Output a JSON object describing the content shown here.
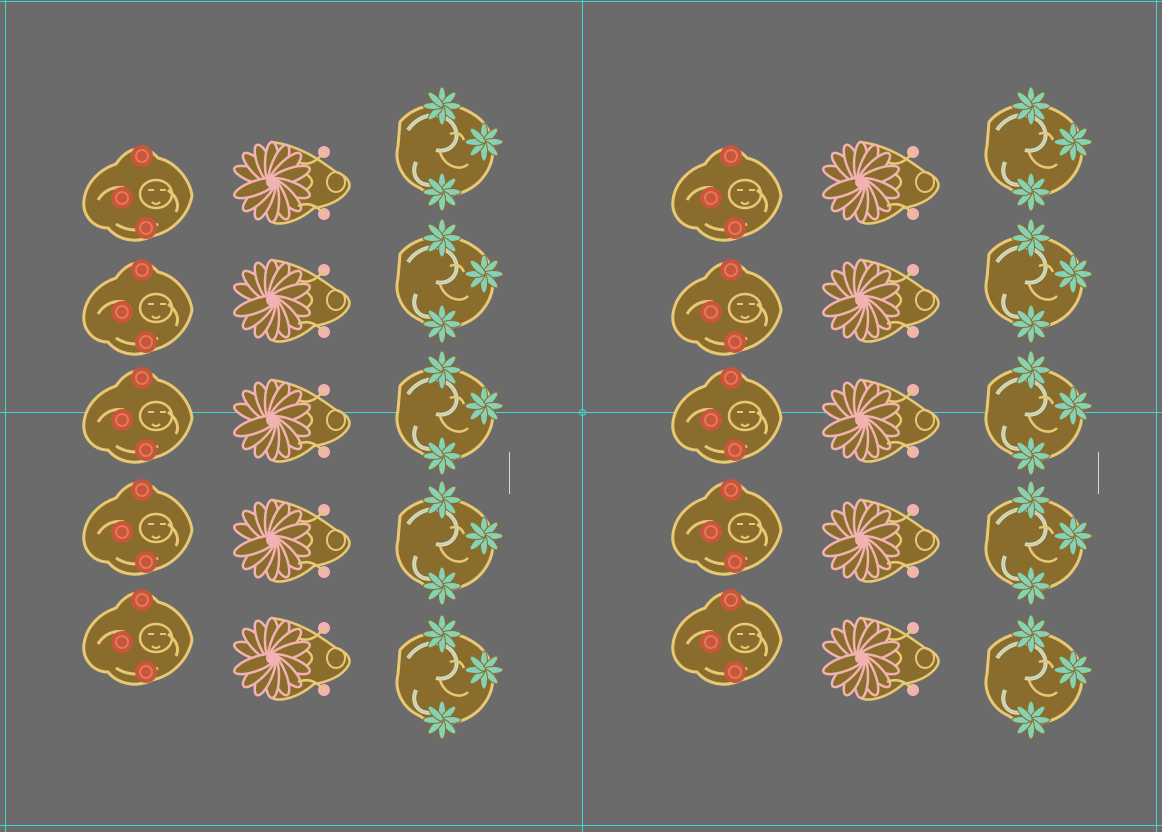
{
  "canvas": {
    "background": "#6b6b6b",
    "guide_color": "#3fd6d6"
  },
  "panels": [
    {
      "name": "left-panel",
      "columns": [
        {
          "icon": "lotus-buddha-face-sticker-icon",
          "count": 5
        },
        {
          "icon": "lotus-meditating-buddha-sticker-icon",
          "count": 5
        },
        {
          "icon": "ganesha-leaves-sticker-icon",
          "count": 5
        }
      ]
    },
    {
      "name": "right-panel",
      "columns": [
        {
          "icon": "lotus-buddha-face-sticker-icon",
          "count": 5
        },
        {
          "icon": "lotus-meditating-buddha-sticker-icon",
          "count": 5
        },
        {
          "icon": "ganesha-leaves-sticker-icon",
          "count": 5
        }
      ]
    }
  ],
  "palette": {
    "sticker_base": "#8a6d2c",
    "sticker_outline": "#e8c874",
    "red_flowers": "#c9553a",
    "pink_lotus": "#f3b2b2",
    "mint_leaves": "#86d2b6",
    "light_blue": "#bfe3ea"
  }
}
